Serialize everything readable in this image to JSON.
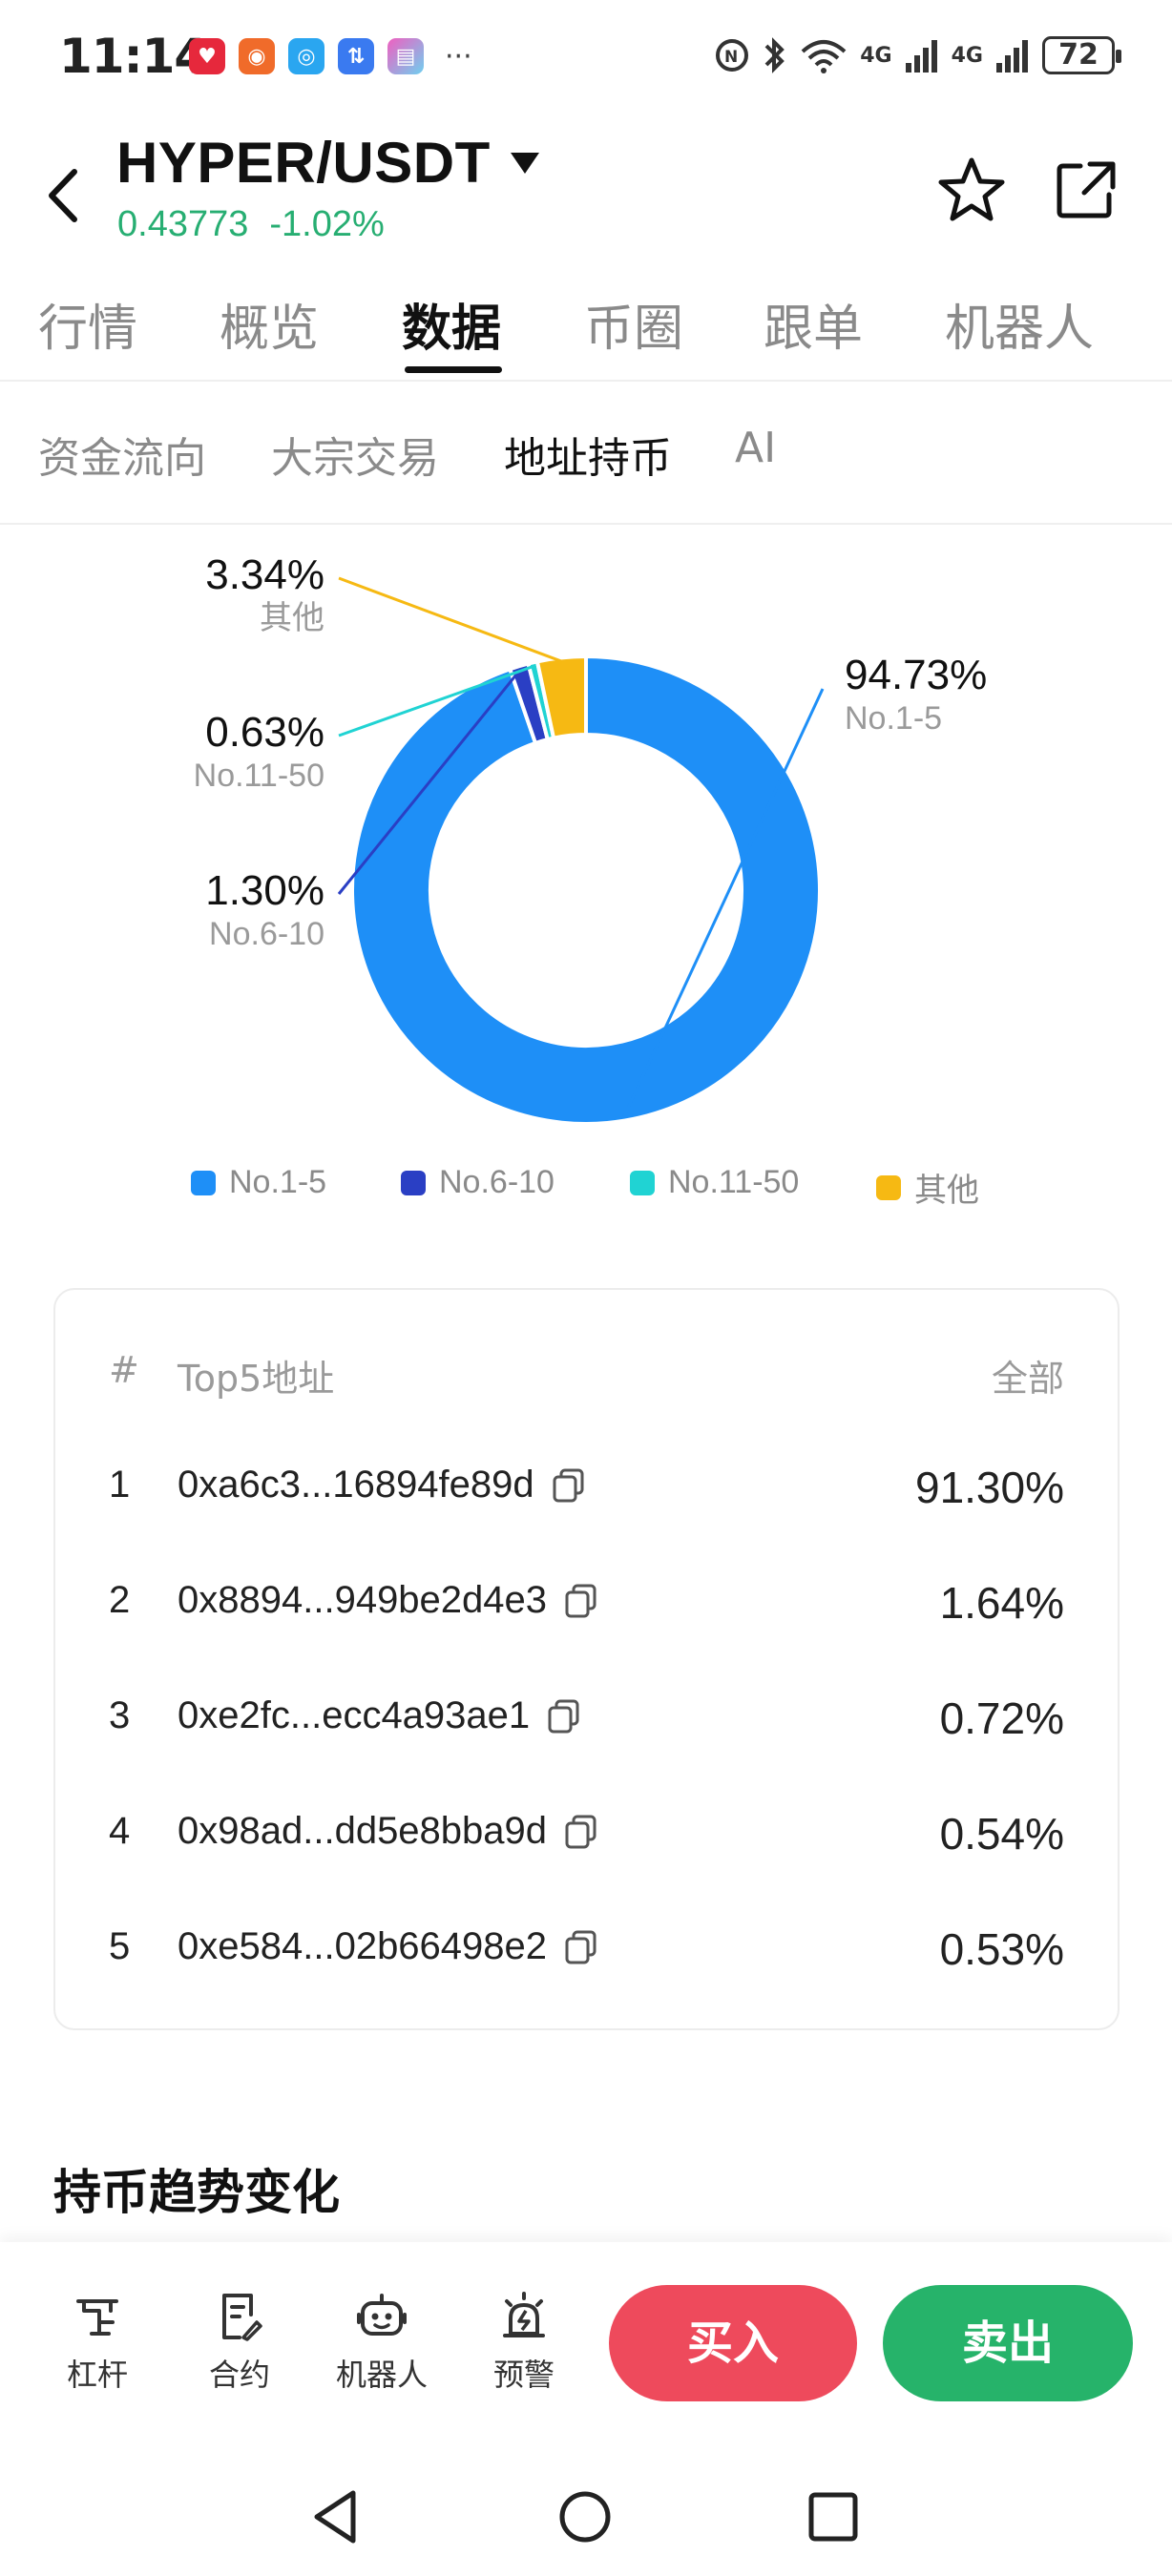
{
  "status_bar": {
    "time": "11:14",
    "network_labels": [
      "4G",
      "4G"
    ],
    "battery": "72"
  },
  "header": {
    "pair": "HYPER/USDT",
    "price": "0.43773",
    "change": "-1.02%",
    "price_color": "#27ae72"
  },
  "main_tabs": [
    "行情",
    "概览",
    "数据",
    "币圈",
    "跟单",
    "机器人"
  ],
  "main_tab_active": "数据",
  "sub_tabs": [
    "资金流向",
    "大宗交易",
    "地址持币",
    "AI"
  ],
  "sub_tab_active": "地址持币",
  "chart_data": {
    "type": "pie",
    "donut": true,
    "categories": [
      "No.1-5",
      "No.6-10",
      "No.11-50",
      "其他"
    ],
    "values": [
      94.73,
      1.3,
      0.63,
      3.34
    ],
    "labels": [
      "94.73%",
      "1.30%",
      "0.63%",
      "3.34%"
    ],
    "colors": [
      "#1e8ff7",
      "#2a3fc4",
      "#20d3d3",
      "#f6b913"
    ],
    "legend_position": "bottom"
  },
  "table": {
    "headers": {
      "rank": "#",
      "address": "Top5地址",
      "scope": "全部"
    },
    "rows": [
      {
        "rank": "1",
        "address": "0xa6c3...16894fe89d",
        "pct": "91.30%"
      },
      {
        "rank": "2",
        "address": "0x8894...949be2d4e3",
        "pct": "1.64%"
      },
      {
        "rank": "3",
        "address": "0xe2fc...ecc4a93ae1",
        "pct": "0.72%"
      },
      {
        "rank": "4",
        "address": "0x98ad...dd5e8bba9d",
        "pct": "0.54%"
      },
      {
        "rank": "5",
        "address": "0xe584...02b66498e2",
        "pct": "0.53%"
      }
    ]
  },
  "section_title": "持币趋势变化",
  "bottom_bar": {
    "tools": [
      "杠杆",
      "合约",
      "机器人",
      "预警"
    ],
    "buy": "买入",
    "sell": "卖出",
    "buy_color": "#ee4a5c",
    "sell_color": "#26b36a"
  }
}
